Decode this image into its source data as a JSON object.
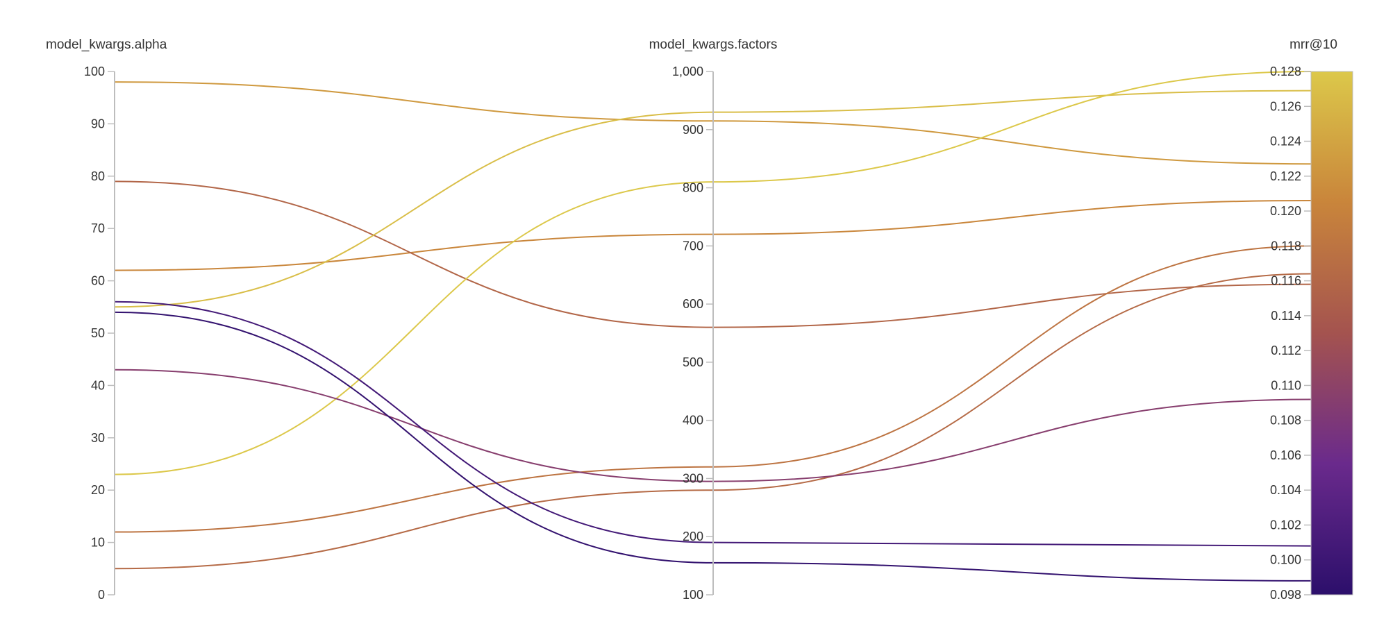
{
  "chart_data": {
    "type": "parallel_coordinates",
    "axes": [
      {
        "label": "model_kwargs.alpha",
        "range": [
          0,
          100
        ],
        "ticks": [
          "0",
          "10",
          "20",
          "30",
          "40",
          "50",
          "60",
          "70",
          "80",
          "90",
          "100"
        ],
        "tick_values": [
          0,
          10,
          20,
          30,
          40,
          50,
          60,
          70,
          80,
          90,
          100
        ]
      },
      {
        "label": "model_kwargs.factors",
        "range": [
          100,
          1000
        ],
        "ticks": [
          "100",
          "200",
          "300",
          "400",
          "500",
          "600",
          "700",
          "800",
          "900",
          "1,000"
        ],
        "tick_values": [
          100,
          200,
          300,
          400,
          500,
          600,
          700,
          800,
          900,
          1000
        ]
      },
      {
        "label": "mrr@10",
        "range": [
          0.098,
          0.128
        ],
        "ticks": [
          "0.098",
          "0.100",
          "0.102",
          "0.104",
          "0.106",
          "0.108",
          "0.110",
          "0.112",
          "0.114",
          "0.116",
          "0.118",
          "0.120",
          "0.122",
          "0.124",
          "0.126",
          "0.128"
        ],
        "tick_values": [
          0.098,
          0.1,
          0.102,
          0.104,
          0.106,
          0.108,
          0.11,
          0.112,
          0.114,
          0.116,
          0.118,
          0.12,
          0.122,
          0.124,
          0.126,
          0.128
        ]
      }
    ],
    "colorscale": {
      "range": [
        0.098,
        0.128
      ],
      "stops": [
        "#2c0f6b",
        "#6a2a8c",
        "#a4534f",
        "#c9853b",
        "#dcc84a"
      ]
    },
    "runs": [
      {
        "alpha": 98,
        "factors": 915,
        "mrr": 0.1227
      },
      {
        "alpha": 62,
        "factors": 720,
        "mrr": 0.1206
      },
      {
        "alpha": 79,
        "factors": 560,
        "mrr": 0.1158
      },
      {
        "alpha": 55,
        "factors": 930,
        "mrr": 0.1269
      },
      {
        "alpha": 23,
        "factors": 810,
        "mrr": 0.128
      },
      {
        "alpha": 12,
        "factors": 320,
        "mrr": 0.118
      },
      {
        "alpha": 5,
        "factors": 280,
        "mrr": 0.1164
      },
      {
        "alpha": 43,
        "factors": 295,
        "mrr": 0.1092
      },
      {
        "alpha": 56,
        "factors": 190,
        "mrr": 0.1008
      },
      {
        "alpha": 54,
        "factors": 155,
        "mrr": 0.0988
      }
    ]
  }
}
